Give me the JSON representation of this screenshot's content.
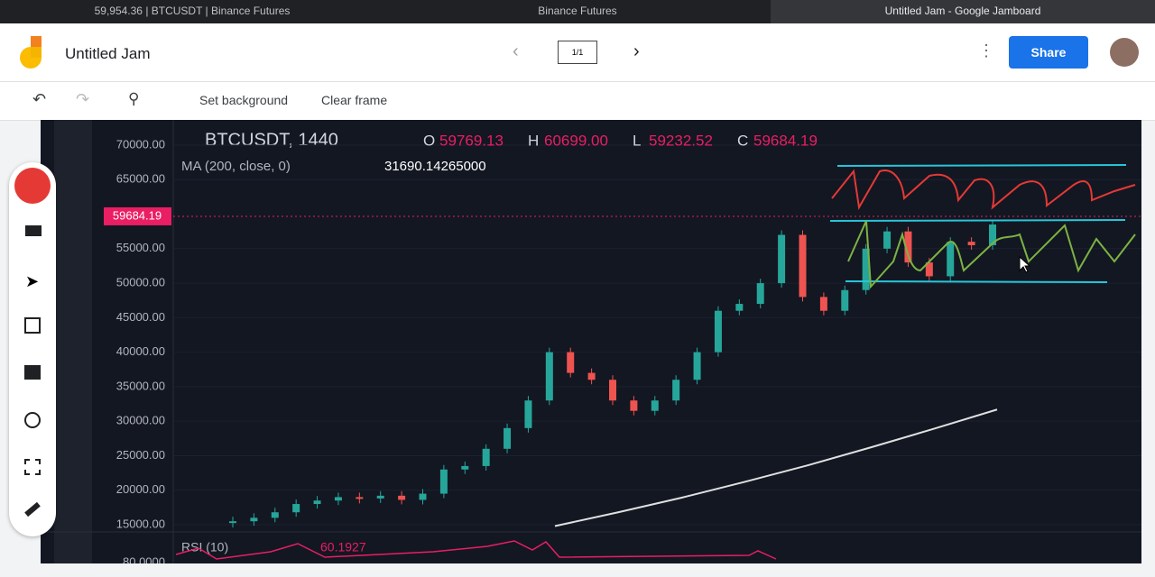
{
  "tabs": [
    "59,954.36 | BTCUSDT | Binance Futures",
    "Binance Futures",
    "Untitled Jam - Google Jamboard"
  ],
  "app": {
    "title": "Untitled Jam",
    "pager": "1/1",
    "share": "Share"
  },
  "toolbar": {
    "set_background": "Set background",
    "clear_frame": "Clear frame"
  },
  "chart": {
    "symbol": "BTCUSDT, 1440",
    "ohlc": [
      {
        "key": "O",
        "value": "59769.13"
      },
      {
        "key": "H",
        "value": "60699.00"
      },
      {
        "key": "L",
        "value": "59232.52"
      },
      {
        "key": "C",
        "value": "59684.19"
      }
    ],
    "ma_label": "MA (200, close, 0)",
    "ma_value": "31690.14265000",
    "price_tag": 59684.19,
    "ylim": [
      14608,
      72742
    ],
    "yticks": [
      {
        "value": 70000,
        "label": "70000.00"
      },
      {
        "value": 65000,
        "label": "65000.00"
      },
      {
        "value": 55000,
        "label": "55000.00"
      },
      {
        "value": 50000,
        "label": "50000.00"
      },
      {
        "value": 45000,
        "label": "45000.00"
      },
      {
        "value": 40000,
        "label": "40000.00"
      },
      {
        "value": 35000,
        "label": "35000.00"
      },
      {
        "value": 30000,
        "label": "30000.00"
      },
      {
        "value": 25000,
        "label": "25000.00"
      },
      {
        "value": 20000,
        "label": "20000.00"
      },
      {
        "value": 15000,
        "label": "15000.00"
      }
    ],
    "closes": [
      15500,
      16000,
      16800,
      18000,
      18500,
      19000,
      18800,
      19200,
      18600,
      19500,
      23000,
      23500,
      26000,
      29000,
      33000,
      40000,
      37000,
      36000,
      33000,
      31500,
      33000,
      36000,
      40000,
      46000,
      47000,
      50000,
      57000,
      48000,
      46000,
      49000,
      55000,
      57500,
      53000,
      51000,
      56000,
      55500,
      58500
    ],
    "ma": [
      14800,
      16800,
      18900,
      21200,
      23600,
      26200,
      28900,
      31690
    ],
    "rsi_label": "RSI (10)",
    "rsi_value": "60.1927",
    "rsi_tick": "80.0000"
  }
}
